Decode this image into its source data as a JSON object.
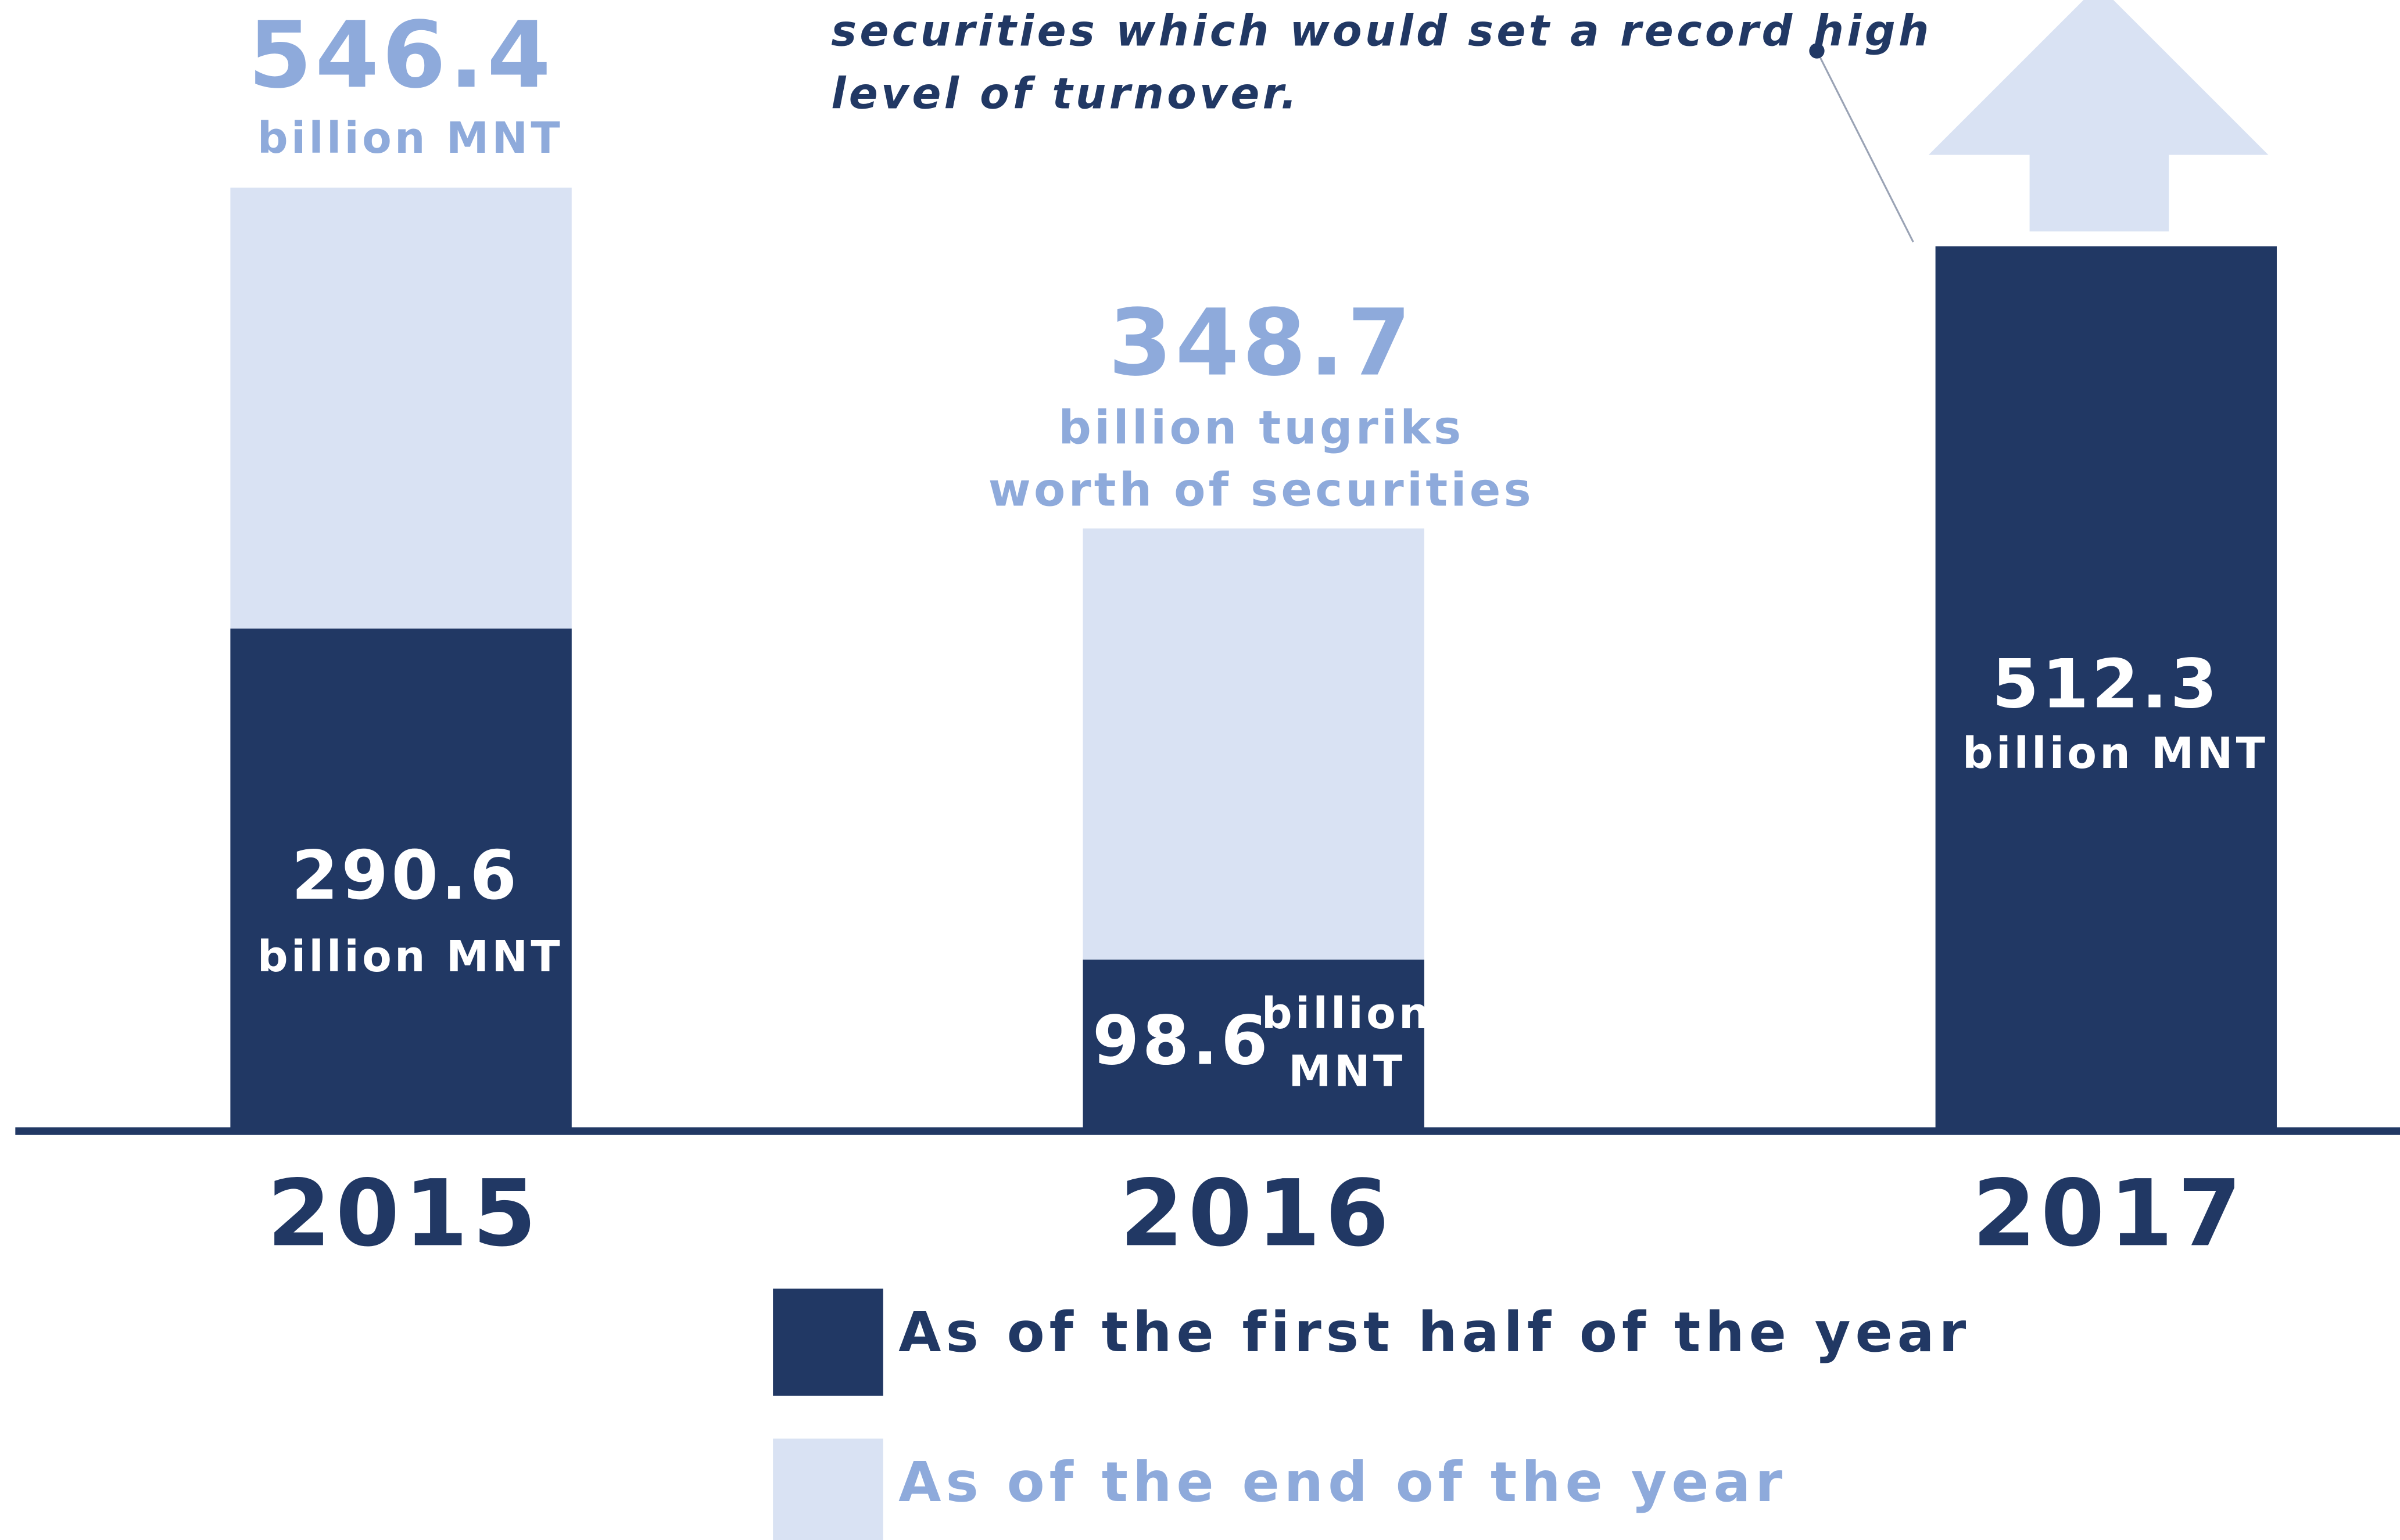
{
  "chart_data": {
    "type": "overlap_bar",
    "categories": [
      "2015",
      "2016",
      "2017"
    ],
    "series": [
      {
        "name": "As of the first half of the year",
        "color": "#213864",
        "label_color": "#213864",
        "values": [
          290.6,
          98.6,
          512.3
        ],
        "units": [
          "billion MNT",
          "billion MNT",
          "billion MNT"
        ]
      },
      {
        "name": "As of the end of the year",
        "color": "#d9e2f3",
        "label_color": "#8eaadb",
        "values": [
          546.4,
          348.7,
          null
        ],
        "units": [
          "billion MNT",
          "billion tugriks worth of securities",
          null
        ]
      }
    ],
    "ylim": [
      0,
      655
    ],
    "annotation": [
      "securities which would set a record high",
      "level of turnover."
    ]
  }
}
